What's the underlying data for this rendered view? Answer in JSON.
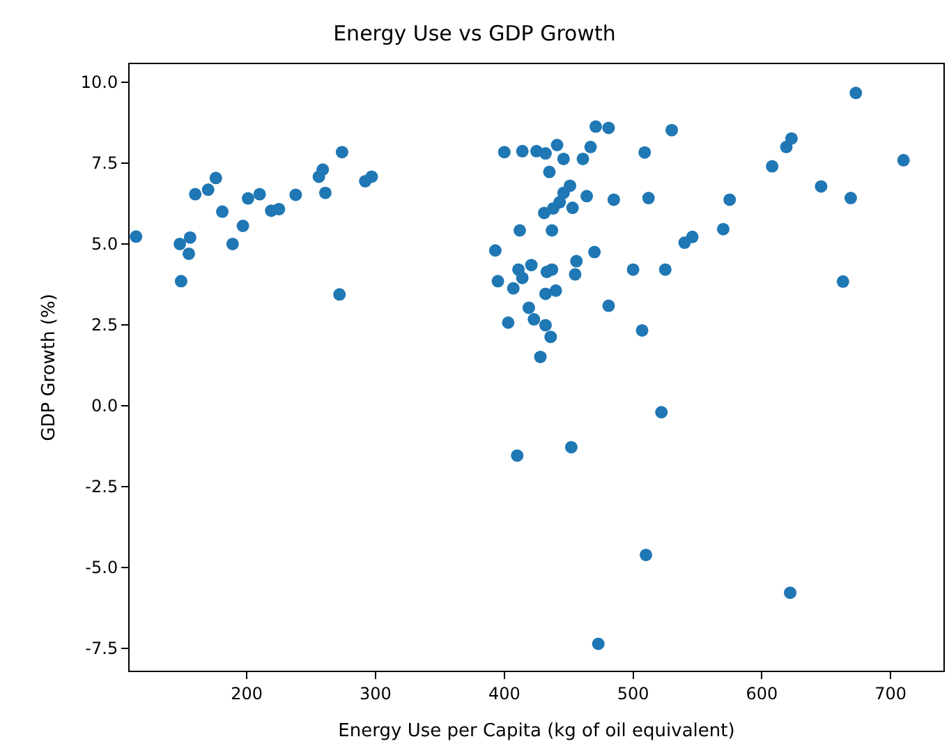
{
  "chart_data": {
    "type": "scatter",
    "title": "Energy Use vs GDP Growth",
    "xlabel": "Energy Use per Capita (kg of oil equivalent)",
    "ylabel": "GDP Growth (%)",
    "x": [
      114,
      148,
      156,
      155,
      149,
      160,
      170,
      176,
      181,
      189,
      197,
      201,
      210,
      219,
      225,
      238,
      256,
      259,
      261,
      274,
      272,
      292,
      297,
      400,
      414,
      425,
      393,
      412,
      395,
      407,
      411,
      421,
      414,
      403,
      419,
      423,
      428,
      410,
      673,
      471,
      481,
      530,
      623,
      619,
      432,
      441,
      446,
      461,
      467,
      509,
      435,
      710,
      608,
      646,
      669,
      575,
      512,
      485,
      464,
      451,
      446,
      443,
      453,
      438,
      431,
      437,
      570,
      546,
      540,
      470,
      456,
      455,
      433,
      437,
      500,
      525,
      432,
      440,
      663,
      481,
      507,
      432,
      436,
      522,
      452,
      510,
      622,
      473
    ],
    "values": [
      5.23,
      5.0,
      5.2,
      4.7,
      3.85,
      6.54,
      6.68,
      7.04,
      6.0,
      5.0,
      5.56,
      6.41,
      6.54,
      6.03,
      6.08,
      6.52,
      7.08,
      7.3,
      6.58,
      7.84,
      3.44,
      6.94,
      7.08,
      7.84,
      7.87,
      7.87,
      4.8,
      5.42,
      3.85,
      3.63,
      4.21,
      4.35,
      3.95,
      2.57,
      3.03,
      2.67,
      1.51,
      -1.54,
      9.67,
      8.63,
      8.59,
      8.52,
      8.26,
      8.0,
      7.8,
      8.06,
      7.63,
      7.63,
      8.0,
      7.83,
      7.23,
      7.59,
      7.4,
      6.78,
      6.42,
      6.37,
      6.42,
      6.37,
      6.48,
      6.8,
      6.58,
      6.29,
      6.12,
      6.1,
      5.96,
      5.42,
      5.46,
      5.22,
      5.04,
      4.75,
      4.47,
      4.06,
      4.14,
      4.21,
      4.21,
      4.21,
      3.46,
      3.56,
      3.84,
      3.09,
      2.33,
      2.49,
      2.13,
      -0.2,
      -1.28,
      -4.61,
      -5.78,
      -7.36
    ],
    "color": "#1f77b4",
    "marker": "circle",
    "xlim": [
      109,
      741
    ],
    "xticks": [
      200,
      300,
      400,
      500,
      600,
      700
    ],
    "ylim": [
      -8.19,
      10.56
    ],
    "yticks": [
      -7.5,
      {
        "value": -5,
        "label": "-5.0"
      },
      -2.5,
      {
        "value": 0,
        "label": "0.0"
      },
      2.5,
      {
        "value": 5,
        "label": "5.0"
      },
      7.5,
      {
        "value": 10,
        "label": "10.0"
      }
    ]
  }
}
